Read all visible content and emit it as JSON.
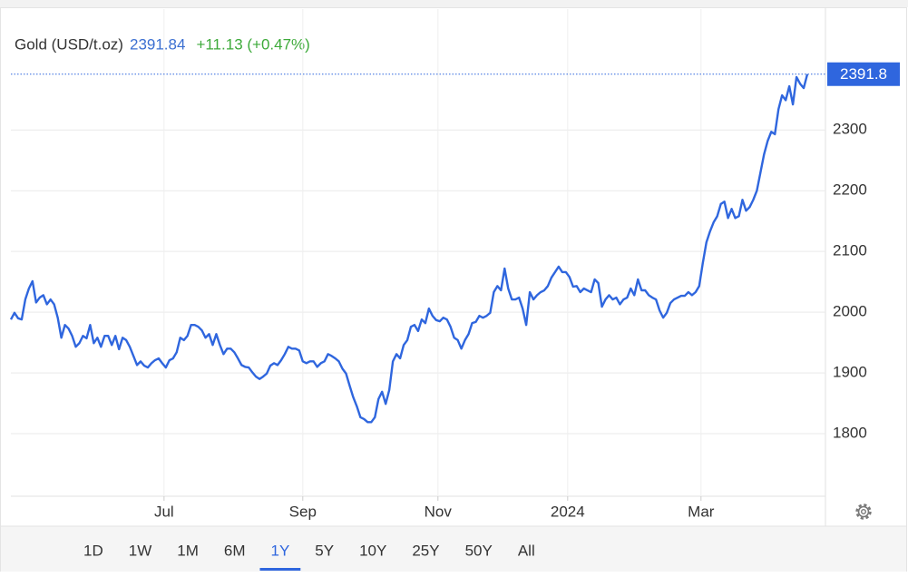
{
  "chart_data": {
    "type": "line",
    "title": "Gold (USD/t.oz)",
    "price": 2391.84,
    "change": "+11.13 (+0.47%)",
    "color": "#2f66de",
    "grid": true,
    "marker": {
      "value": 2391.84,
      "label": "2391.8"
    },
    "values": [
      1988,
      1999,
      1990,
      1988,
      2021,
      2039,
      2051,
      2016,
      2024,
      2028,
      2013,
      2021,
      2013,
      1991,
      1958,
      1979,
      1973,
      1961,
      1943,
      1949,
      1961,
      1957,
      1979,
      1949,
      1958,
      1943,
      1961,
      1961,
      1946,
      1961,
      1939,
      1958,
      1954,
      1943,
      1928,
      1913,
      1919,
      1912,
      1909,
      1916,
      1921,
      1924,
      1916,
      1909,
      1921,
      1924,
      1934,
      1958,
      1954,
      1961,
      1979,
      1979,
      1976,
      1970,
      1958,
      1964,
      1946,
      1964,
      1946,
      1931,
      1940,
      1940,
      1934,
      1924,
      1913,
      1910,
      1909,
      1901,
      1894,
      1890,
      1894,
      1899,
      1912,
      1916,
      1913,
      1921,
      1931,
      1943,
      1940,
      1940,
      1937,
      1919,
      1916,
      1919,
      1919,
      1910,
      1916,
      1919,
      1931,
      1928,
      1924,
      1919,
      1907,
      1899,
      1879,
      1860,
      1845,
      1827,
      1824,
      1819,
      1819,
      1827,
      1857,
      1869,
      1849,
      1872,
      1919,
      1931,
      1924,
      1946,
      1954,
      1976,
      1979,
      1969,
      1988,
      1982,
      2006,
      1994,
      1987,
      1985,
      1991,
      1988,
      1976,
      1958,
      1954,
      1940,
      1954,
      1964,
      1982,
      1984,
      1994,
      1991,
      1994,
      1999,
      2033,
      2043,
      2036,
      2072,
      2039,
      2021,
      2021,
      2024,
      2006,
      1979,
      2033,
      2021,
      2028,
      2033,
      2036,
      2043,
      2057,
      2066,
      2075,
      2066,
      2066,
      2058,
      2042,
      2043,
      2033,
      2039,
      2036,
      2033,
      2054,
      2048,
      2009,
      2021,
      2028,
      2021,
      2024,
      2013,
      2021,
      2024,
      2039,
      2028,
      2054,
      2036,
      2036,
      2028,
      2024,
      2021,
      2003,
      1991,
      1999,
      2015,
      2021,
      2024,
      2027,
      2027,
      2033,
      2028,
      2033,
      2043,
      2081,
      2115,
      2133,
      2148,
      2158,
      2178,
      2182,
      2155,
      2170,
      2155,
      2158,
      2185,
      2167,
      2173,
      2185,
      2200,
      2230,
      2260,
      2282,
      2297,
      2293,
      2334,
      2357,
      2349,
      2372,
      2342,
      2387,
      2376,
      2369,
      2391.84
    ],
    "xlim": [
      0,
      221
    ],
    "xticks": [
      {
        "value": 42.5,
        "label": "Jul"
      },
      {
        "value": 81,
        "label": "Sep"
      },
      {
        "value": 118.5,
        "label": "Nov"
      },
      {
        "value": 154.5,
        "label": "2024"
      },
      {
        "value": 191.5,
        "label": "Mar"
      }
    ],
    "ylim": [
      1697,
      2499
    ],
    "yticks": [
      1800,
      1900,
      2000,
      2100,
      2200,
      2300
    ]
  },
  "ranges": [
    "1D",
    "1W",
    "1M",
    "6M",
    "1Y",
    "5Y",
    "10Y",
    "25Y",
    "50Y",
    "All"
  ],
  "selected_range": 4
}
